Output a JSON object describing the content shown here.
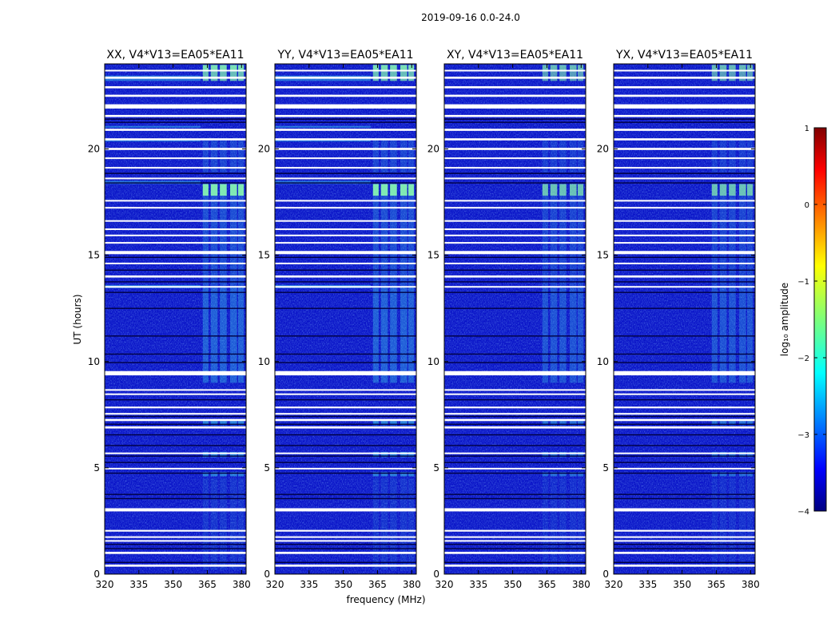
{
  "figure_title": "2019-09-16 0.0-24.0",
  "chart_data": {
    "type": "heatmap",
    "title": "2019-09-16 0.0-24.0",
    "xlabel": "frequency (MHz)",
    "ylabel": "UT (hours)",
    "xlim": [
      320,
      382
    ],
    "ylim": [
      0,
      24
    ],
    "xticks": [
      320,
      335,
      350,
      365,
      380
    ],
    "yticks": [
      0,
      5,
      10,
      15,
      20
    ],
    "panels": [
      {
        "title": "XX, V4*V13=EA05*EA11",
        "rfi_level": "strong",
        "low_band_stripe": true
      },
      {
        "title": "YY, V4*V13=EA05*EA11",
        "rfi_level": "strong",
        "low_band_stripe": true
      },
      {
        "title": "XY, V4*V13=EA05*EA11",
        "rfi_level": "medium",
        "low_band_stripe": false
      },
      {
        "title": "YX, V4*V13=EA05*EA11",
        "rfi_level": "medium",
        "low_band_stripe": false
      }
    ],
    "flagged_time_ranges_hours": [
      [
        0.35,
        0.45
      ],
      [
        0.95,
        1.05
      ],
      [
        1.55,
        1.6
      ],
      [
        1.72,
        1.78
      ],
      [
        2.0,
        2.08
      ],
      [
        2.95,
        3.1
      ],
      [
        4.95,
        5.0
      ],
      [
        5.68,
        5.72
      ],
      [
        6.85,
        6.95
      ],
      [
        7.2,
        7.3
      ],
      [
        7.5,
        7.58
      ],
      [
        7.8,
        7.88
      ],
      [
        8.45,
        8.5
      ],
      [
        8.65,
        8.7
      ],
      [
        9.35,
        9.55
      ],
      [
        13.5,
        13.55
      ],
      [
        13.95,
        14.05
      ],
      [
        14.6,
        14.65
      ],
      [
        15.05,
        15.2
      ],
      [
        15.55,
        15.62
      ],
      [
        15.9,
        15.97
      ],
      [
        16.2,
        16.26
      ],
      [
        16.6,
        16.65
      ],
      [
        17.2,
        17.27
      ],
      [
        17.55,
        17.6
      ],
      [
        18.6,
        18.65
      ],
      [
        19.1,
        19.15
      ],
      [
        19.55,
        19.6
      ],
      [
        19.95,
        20.05
      ],
      [
        20.4,
        20.5
      ],
      [
        20.85,
        20.95
      ],
      [
        21.5,
        21.6
      ],
      [
        21.9,
        22.1
      ],
      [
        22.45,
        22.55
      ],
      [
        22.85,
        22.95
      ],
      [
        23.3,
        23.4
      ],
      [
        23.65,
        23.72
      ]
    ],
    "dark_time_lines_hours": [
      0.55,
      1.2,
      1.4,
      3.55,
      3.75,
      4.75,
      5.25,
      5.55,
      6.05,
      6.55,
      7.05,
      7.42,
      8.2,
      9.95,
      10.35,
      11.2,
      12.5,
      13.25,
      13.75,
      14.3,
      14.9,
      18.4,
      18.85,
      21.25,
      21.4
    ],
    "rfi_channels_mhz": [
      [
        363,
        365.5
      ],
      [
        366.5,
        369.5
      ],
      [
        370.5,
        373.5
      ],
      [
        375,
        378
      ],
      [
        378.5,
        381
      ]
    ],
    "rfi_time_windows_hours": [
      [
        0.2,
        4.5,
        0.12
      ],
      [
        4.6,
        4.8,
        0.5
      ],
      [
        5.5,
        5.75,
        0.55
      ],
      [
        7.0,
        7.2,
        0.55
      ],
      [
        9.0,
        13.5,
        0.35
      ],
      [
        13.5,
        17.8,
        0.25
      ],
      [
        17.8,
        18.35,
        0.9
      ],
      [
        18.9,
        20.5,
        0.2
      ],
      [
        23.2,
        23.7,
        0.7
      ],
      [
        23.7,
        23.95,
        0.85
      ]
    ],
    "colorbar": {
      "label": "log₁₀ amplitude",
      "min": -4,
      "max": 1,
      "ticks": [
        "1",
        "0",
        "−1",
        "−2",
        "−3",
        "−4"
      ],
      "colormap": "jet"
    }
  }
}
